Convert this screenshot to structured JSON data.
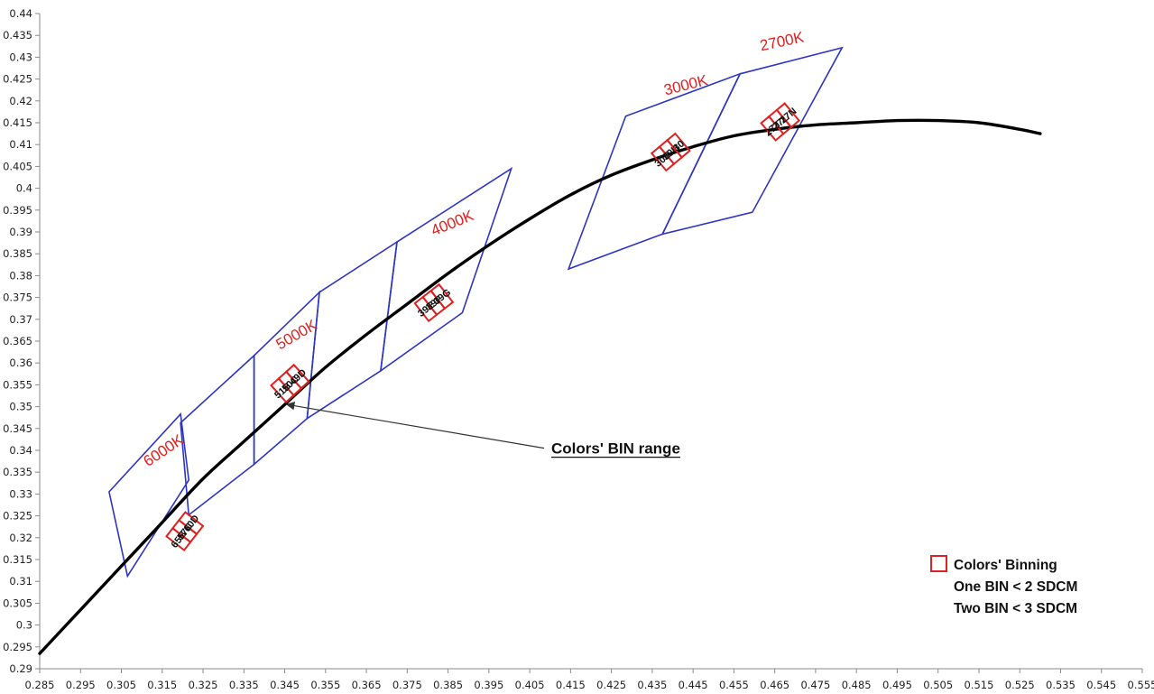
{
  "chart_data": {
    "type": "diagram",
    "xlim": [
      0.285,
      0.555
    ],
    "ylim": [
      0.29,
      0.44
    ],
    "x_ticks": [
      "0.285",
      "0.295",
      "0.305",
      "0.315",
      "0.325",
      "0.335",
      "0.345",
      "0.355",
      "0.365",
      "0.375",
      "0.385",
      "0.395",
      "0.405",
      "0.415",
      "0.425",
      "0.435",
      "0.445",
      "0.455",
      "0.465",
      "0.475",
      "0.485",
      "0.495",
      "0.505",
      "0.515",
      "0.525",
      "0.535",
      "0.545",
      "0.555"
    ],
    "y_ticks": [
      "0.29",
      "0.295",
      "0.3",
      "0.305",
      "0.31",
      "0.315",
      "0.32",
      "0.325",
      "0.33",
      "0.335",
      "0.34",
      "0.345",
      "0.35",
      "0.355",
      "0.36",
      "0.365",
      "0.37",
      "0.375",
      "0.38",
      "0.385",
      "0.39",
      "0.395",
      "0.4",
      "0.405",
      "0.41",
      "0.415",
      "0.42",
      "0.425",
      "0.43",
      "0.435",
      "0.44"
    ],
    "colors": {
      "locus": "#000000",
      "quad": "#2d35c2",
      "bin": "#e02020",
      "label": "#e02020"
    },
    "locus": [
      [
        0.285,
        0.2935
      ],
      [
        0.295,
        0.3035
      ],
      [
        0.305,
        0.3135
      ],
      [
        0.315,
        0.3235
      ],
      [
        0.325,
        0.3335
      ],
      [
        0.335,
        0.342
      ],
      [
        0.345,
        0.3505
      ],
      [
        0.355,
        0.359
      ],
      [
        0.365,
        0.3665
      ],
      [
        0.375,
        0.3735
      ],
      [
        0.385,
        0.3805
      ],
      [
        0.395,
        0.387
      ],
      [
        0.405,
        0.393
      ],
      [
        0.415,
        0.3985
      ],
      [
        0.425,
        0.403
      ],
      [
        0.435,
        0.4065
      ],
      [
        0.445,
        0.4095
      ],
      [
        0.455,
        0.412
      ],
      [
        0.465,
        0.4135
      ],
      [
        0.475,
        0.4145
      ],
      [
        0.485,
        0.415
      ],
      [
        0.495,
        0.4155
      ],
      [
        0.505,
        0.4155
      ],
      [
        0.515,
        0.415
      ],
      [
        0.525,
        0.4135
      ],
      [
        0.53,
        0.4125
      ]
    ],
    "quadrangles": [
      {
        "name": "6000K-left",
        "points": [
          [
            0.302,
            0.3305
          ],
          [
            0.3195,
            0.3483
          ],
          [
            0.3215,
            0.3332
          ],
          [
            0.3065,
            0.3112
          ]
        ]
      },
      {
        "name": "6000K-right",
        "points": [
          [
            0.3195,
            0.3463
          ],
          [
            0.3375,
            0.3617
          ],
          [
            0.3375,
            0.3368
          ],
          [
            0.3215,
            0.3252
          ]
        ]
      },
      {
        "name": "5000K-left",
        "points": [
          [
            0.3375,
            0.3617
          ],
          [
            0.3535,
            0.3762
          ],
          [
            0.3505,
            0.3473
          ],
          [
            0.3375,
            0.3368
          ]
        ]
      },
      {
        "name": "5000K-right",
        "points": [
          [
            0.3535,
            0.3762
          ],
          [
            0.3725,
            0.3877
          ],
          [
            0.3685,
            0.3582
          ],
          [
            0.3505,
            0.3473
          ]
        ]
      },
      {
        "name": "4000K",
        "points": [
          [
            0.3725,
            0.3877
          ],
          [
            0.4005,
            0.4045
          ],
          [
            0.3885,
            0.3715
          ],
          [
            0.3685,
            0.3582
          ]
        ]
      },
      {
        "name": "3000K",
        "points": [
          [
            0.4285,
            0.4165
          ],
          [
            0.4565,
            0.4262
          ],
          [
            0.4375,
            0.3895
          ],
          [
            0.4145,
            0.3815
          ]
        ]
      },
      {
        "name": "2700K",
        "points": [
          [
            0.4565,
            0.4262
          ],
          [
            0.4815,
            0.4322
          ],
          [
            0.4595,
            0.3945
          ],
          [
            0.4375,
            0.3895
          ]
        ]
      }
    ],
    "cct_labels": [
      {
        "text": "6000K",
        "x": 0.316,
        "y": 0.339,
        "angle": -34
      },
      {
        "text": "5000K",
        "x": 0.3485,
        "y": 0.3655,
        "angle": -30
      },
      {
        "text": "4000K",
        "x": 0.3865,
        "y": 0.391,
        "angle": -22
      },
      {
        "text": "3000K",
        "x": 0.4435,
        "y": 0.4225,
        "angle": -14
      },
      {
        "text": "2700K",
        "x": 0.467,
        "y": 0.4325,
        "angle": -12
      }
    ],
    "bin_groups": [
      {
        "cx": 0.3205,
        "cy": 0.3215,
        "angle": -52,
        "labels": [
          "65B",
          "57C",
          "60D"
        ]
      },
      {
        "cx": 0.3463,
        "cy": 0.3553,
        "angle": -42,
        "labels": [
          "51B",
          "50C",
          "49D"
        ]
      },
      {
        "cx": 0.3815,
        "cy": 0.3738,
        "angle": -38,
        "labels": [
          "39E",
          "39F",
          "39G"
        ]
      },
      {
        "cx": 0.4395,
        "cy": 0.4083,
        "angle": -40,
        "labels": [
          "30G",
          "30H",
          "30"
        ]
      },
      {
        "cx": 0.4663,
        "cy": 0.4152,
        "angle": -40,
        "labels": [
          "27J",
          "27L",
          "27N"
        ]
      }
    ],
    "annotation": {
      "text": "Colors' BIN range",
      "tip": [
        0.3455,
        0.3505
      ],
      "tail": [
        0.4085,
        0.3405
      ]
    },
    "legend": {
      "title": "Colors' Binning",
      "lines": [
        "One BIN < 2 SDCM",
        "Two BIN < 3 SDCM"
      ],
      "placement": "bottom-right"
    }
  }
}
